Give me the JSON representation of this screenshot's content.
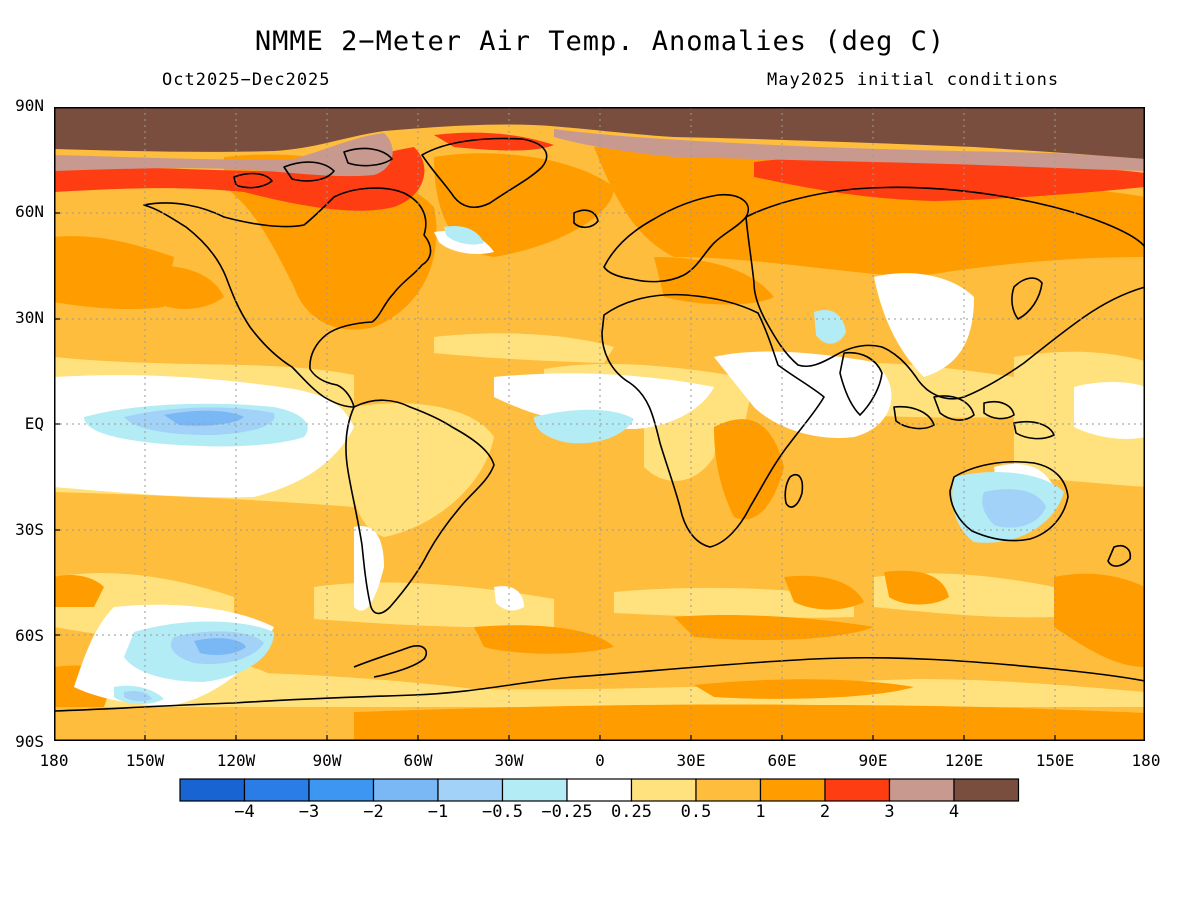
{
  "title": "NMME 2−Meter Air Temp. Anomalies (deg C)",
  "period": "Oct2025−Dec2025",
  "init": "May2025 initial conditions",
  "lat_labels": [
    "90N",
    "60N",
    "30N",
    "EQ",
    "30S",
    "60S",
    "90S"
  ],
  "lon_labels": [
    "180",
    "150W",
    "120W",
    "90W",
    "60W",
    "30W",
    "0",
    "30E",
    "60E",
    "90E",
    "120E",
    "150E",
    "180"
  ],
  "legend": {
    "colors": [
      "#1864d2",
      "#2a7ce6",
      "#3d97f2",
      "#7ab8f5",
      "#a2d2f7",
      "#b4ecf6",
      "#ffffff",
      "#ffe27e",
      "#ffbd3d",
      "#ff9c00",
      "#ff3d13",
      "#c8998f",
      "#7a4e3e"
    ],
    "labels": [
      "−4",
      "−3",
      "−2",
      "−1",
      "−0.5",
      "−0.25",
      "0.25",
      "0.5",
      "1",
      "2",
      "3",
      "4"
    ]
  },
  "map_colors": {
    "base": "#ffbd3d",
    "pale": "#ffe27e",
    "warm": "#ff9c00",
    "hot": "#ff3d13",
    "very_hot": "#c8998f",
    "extreme": "#7a4e3e",
    "neutral": "#ffffff",
    "cool": "#b4ecf6",
    "cooler": "#a2d2f7",
    "cold": "#7ab8f5"
  }
}
